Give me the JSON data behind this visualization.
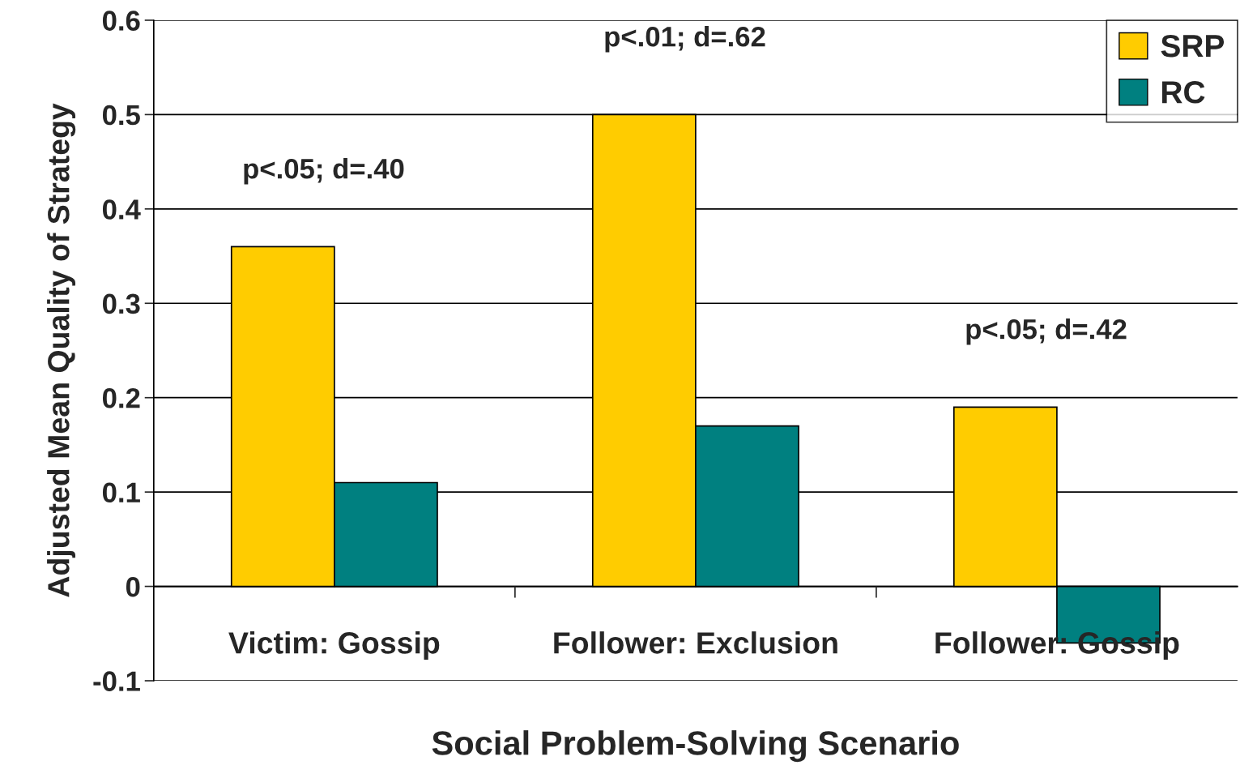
{
  "chart_data": {
    "type": "bar",
    "xlabel": "Social Problem-Solving Scenario",
    "ylabel": "Adjusted Mean Quality of Strategy",
    "categories": [
      "Victim: Gossip",
      "Follower: Exclusion",
      "Follower: Gossip"
    ],
    "series": [
      {
        "name": "SRP",
        "color": "#ffcc00",
        "values": [
          0.36,
          0.5,
          0.19
        ]
      },
      {
        "name": "RC",
        "color": "#008080",
        "values": [
          0.11,
          0.17,
          -0.06
        ]
      }
    ],
    "ylim": [
      -0.1,
      0.6
    ],
    "yticks": [
      {
        "value": -0.1,
        "label": "-0.1"
      },
      0,
      0.1,
      0.2,
      0.3,
      0.4,
      0.5,
      0.6
    ],
    "grid": "y",
    "legend": "top right",
    "annotations": [
      "p<.05; d=.40",
      "p<.01; d=.62",
      "p<.05; d=.42"
    ]
  }
}
